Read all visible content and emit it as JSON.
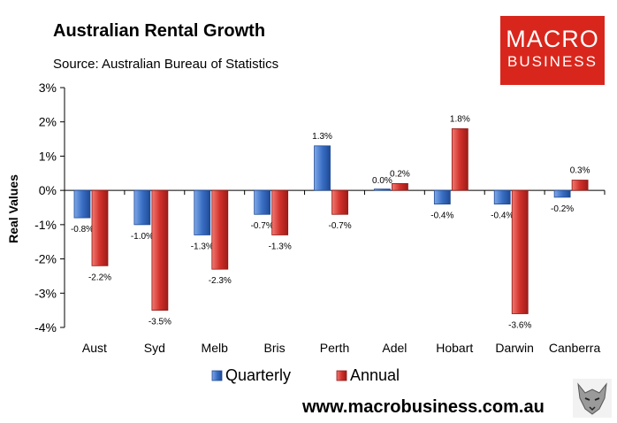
{
  "header": {
    "title": "Australian Rental Growth",
    "subtitle": "Source: Australian Bureau of Statistics"
  },
  "logo": {
    "line1": "MACRO",
    "line2": "BUSINESS",
    "bg_color": "#d9261c"
  },
  "footer": {
    "url": "www.macrobusiness.com.au",
    "icon": "wolf-icon"
  },
  "chart_data": {
    "type": "bar",
    "ylabel": "Real Values",
    "xlabel": "",
    "ylim": [
      -4,
      3
    ],
    "yticks": [
      3,
      2,
      1,
      0,
      -1,
      -2,
      -3,
      -4
    ],
    "ytick_labels": [
      "3%",
      "2%",
      "1%",
      "0%",
      "-1%",
      "-2%",
      "-3%",
      "-4%"
    ],
    "categories": [
      "Aust",
      "Syd",
      "Melb",
      "Bris",
      "Perth",
      "Adel",
      "Hobart",
      "Darwin",
      "Canberra"
    ],
    "series": [
      {
        "name": "Quarterly",
        "color": "#3a6fc4",
        "values": [
          -0.8,
          -1.0,
          -1.3,
          -0.7,
          1.3,
          0.0,
          -0.4,
          -0.4,
          -0.2
        ],
        "labels": [
          "-0.8%",
          "-1.0%",
          "-1.3%",
          "-0.7%",
          "1.3%",
          "0.0%",
          "-0.4%",
          "-0.4%",
          "-0.2%"
        ]
      },
      {
        "name": "Annual",
        "color": "#d1302a",
        "values": [
          -2.2,
          -3.5,
          -2.3,
          -1.3,
          -0.7,
          0.2,
          1.8,
          -3.6,
          0.3
        ],
        "labels": [
          "-2.2%",
          "-3.5%",
          "-2.3%",
          "-1.3%",
          "-0.7%",
          "0.2%",
          "1.8%",
          "-3.6%",
          "0.3%"
        ]
      }
    ],
    "legend_position": "bottom"
  }
}
